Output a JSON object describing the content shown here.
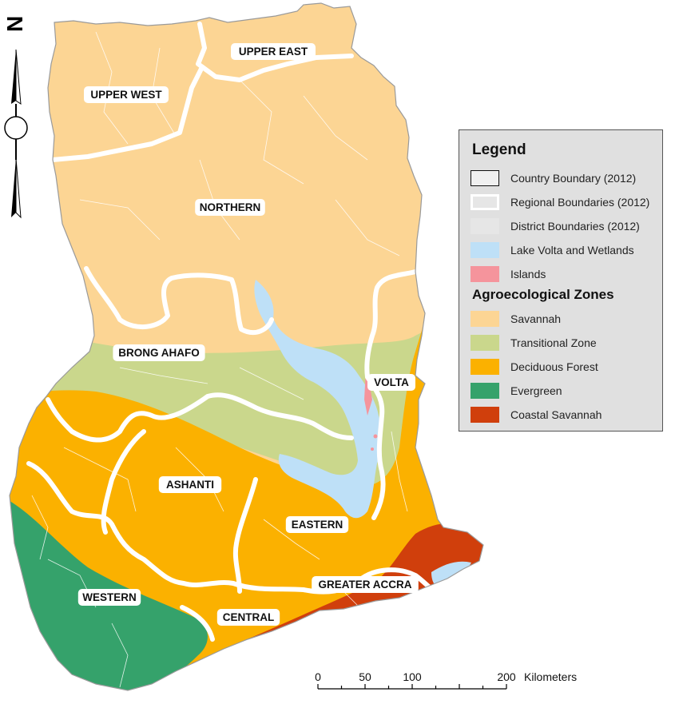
{
  "regions": [
    {
      "name": "UPPER EAST"
    },
    {
      "name": "UPPER WEST"
    },
    {
      "name": "NORTHERN"
    },
    {
      "name": "BRONG AHAFO"
    },
    {
      "name": "VOLTA"
    },
    {
      "name": "ASHANTI"
    },
    {
      "name": "EASTERN"
    },
    {
      "name": "WESTERN"
    },
    {
      "name": "GREATER ACCRA"
    },
    {
      "name": "CENTRAL"
    }
  ],
  "north_arrow": {
    "letter": "N"
  },
  "legend": {
    "title": "Legend",
    "boundary_items": [
      {
        "label": "Country Boundary (2012)",
        "fill": "#f0f0f0",
        "stroke": "#111111"
      },
      {
        "label": "Regional Boundaries (2012)",
        "fill": "#e6e6e6",
        "stroke": "#ffffff"
      },
      {
        "label": "District Boundaries (2012)",
        "fill": "#e6e6e6",
        "stroke": "#e6e6e6"
      },
      {
        "label": "Lake Volta and Wetlands",
        "fill": "#bee0f7",
        "stroke": "#bee0f7"
      },
      {
        "label": "Islands",
        "fill": "#f5949c",
        "stroke": "#f5949c"
      }
    ],
    "zones_title": "Agroecological Zones",
    "zone_items": [
      {
        "label": "Savannah",
        "fill": "#fcd594"
      },
      {
        "label": "Transitional Zone",
        "fill": "#cad78c"
      },
      {
        "label": "Deciduous Forest",
        "fill": "#fbb100"
      },
      {
        "label": "Evergreen",
        "fill": "#35a26b"
      },
      {
        "label": "Coastal Savannah",
        "fill": "#d03f0c"
      }
    ]
  },
  "scale_bar": {
    "ticks": [
      "0",
      "50",
      "100",
      "200"
    ],
    "unit": "Kilometers"
  }
}
